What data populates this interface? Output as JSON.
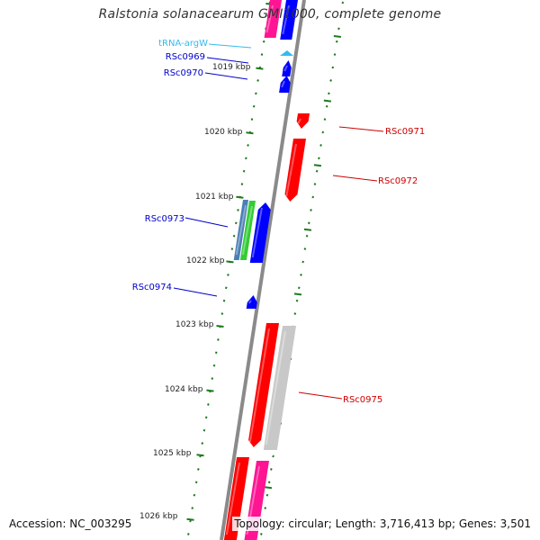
{
  "title": "Ralstonia solanacearum GMI1000, complete genome",
  "footer": {
    "accession": "Accession: NC_003295",
    "summary": "Topology: circular; Length: 3,716,413 bp; Genes: 3,501"
  },
  "colors": {
    "backbone": "#8a8a8a",
    "tick": "#1f7a1f",
    "forward_cds": "#ff0000",
    "reverse_cds": "#0000ff",
    "pink": "#ff1493",
    "grey_feature": "#c8c8c8",
    "steel": "#4a7fb5",
    "green": "#33cc33",
    "trna": "#33bbee",
    "label_forward": "#cc0000",
    "label_reverse": "#0000cc"
  },
  "scale_labels": [
    "1019 kbp",
    "1020 kbp",
    "1021 kbp",
    "1022 kbp",
    "1023 kbp",
    "1024 kbp",
    "1025 kbp",
    "1026 kbp"
  ],
  "gene_labels": [
    {
      "name": "tRNA-argW",
      "kind": "trna"
    },
    {
      "name": "RSc0969",
      "kind": "reverse"
    },
    {
      "name": "RSc0970",
      "kind": "reverse"
    },
    {
      "name": "RSc0971",
      "kind": "forward"
    },
    {
      "name": "RSc0972",
      "kind": "forward"
    },
    {
      "name": "RSc0973",
      "kind": "reverse"
    },
    {
      "name": "RSc0974",
      "kind": "reverse"
    },
    {
      "name": "RSc0975",
      "kind": "forward"
    }
  ]
}
